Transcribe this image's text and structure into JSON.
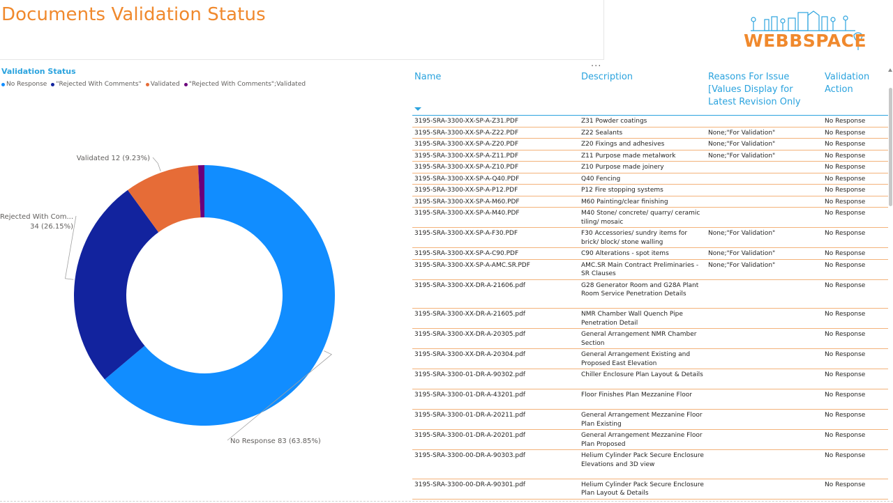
{
  "header": {
    "title": "Documents Validation Status"
  },
  "logo": {
    "text": "WEBBSPACE",
    "icon": "city-skyline-icon"
  },
  "chart_data": {
    "type": "pie",
    "variant": "donut",
    "title": "Validation Status",
    "legend_position": "top-left",
    "categories": [
      "No Response",
      "\"Rejected With Comments\"",
      "Validated",
      "\"Rejected With Comments\";Validated"
    ],
    "values": [
      83,
      34,
      12,
      1
    ],
    "percentages": [
      63.85,
      26.15,
      9.23,
      0.77
    ],
    "colors": [
      "#118dff",
      "#12239e",
      "#e66c37",
      "#6b007b"
    ],
    "labels": [
      {
        "category_line1": "No Response 83 (63.85%)",
        "category_line2": ""
      },
      {
        "category_line1": "\"Rejected With Com...",
        "category_line2": "34 (26.15%)"
      },
      {
        "category_line1": "Validated 12 (9.23%)",
        "category_line2": ""
      }
    ]
  },
  "more_options": "...",
  "table": {
    "columns": [
      {
        "label": "Name"
      },
      {
        "label": "Description"
      },
      {
        "label": "Reasons For Issue [Values Display for Latest Revision Only"
      },
      {
        "label": "Validation Action"
      }
    ],
    "rows": [
      {
        "name": "3195-SRA-3300-XX-SP-A-Z31.PDF",
        "description": "Z31 Powder coatings",
        "reason": "",
        "action": "No Response",
        "lines": 1
      },
      {
        "name": "3195-SRA-3300-XX-SP-A-Z22.PDF",
        "description": "Z22 Sealants",
        "reason": "None;\"For Validation\"",
        "action": "No Response",
        "lines": 1
      },
      {
        "name": "3195-SRA-3300-XX-SP-A-Z20.PDF",
        "description": "Z20 Fixings and adhesives",
        "reason": "None;\"For Validation\"",
        "action": "No Response",
        "lines": 1
      },
      {
        "name": "3195-SRA-3300-XX-SP-A-Z11.PDF",
        "description": "Z11 Purpose made metalwork",
        "reason": "None;\"For Validation\"",
        "action": "No Response",
        "lines": 1
      },
      {
        "name": "3195-SRA-3300-XX-SP-A-Z10.PDF",
        "description": "Z10 Purpose made joinery",
        "reason": "",
        "action": "No Response",
        "lines": 1
      },
      {
        "name": "3195-SRA-3300-XX-SP-A-Q40.PDF",
        "description": "Q40 Fencing",
        "reason": "",
        "action": "No Response",
        "lines": 1
      },
      {
        "name": "3195-SRA-3300-XX-SP-A-P12.PDF",
        "description": "P12 Fire stopping systems",
        "reason": "",
        "action": "No Response",
        "lines": 1
      },
      {
        "name": "3195-SRA-3300-XX-SP-A-M60.PDF",
        "description": "M60 Painting/clear finishing",
        "reason": "",
        "action": "No Response",
        "lines": 1
      },
      {
        "name": "3195-SRA-3300-XX-SP-A-M40.PDF",
        "description": "M40 Stone/ concrete/ quarry/ ceramic tiling/ mosaic",
        "reason": "",
        "action": "No Response",
        "lines": 2
      },
      {
        "name": "3195-SRA-3300-XX-SP-A-F30.PDF",
        "description": "F30 Accessories/ sundry items for brick/ block/ stone walling",
        "reason": "None;\"For Validation\"",
        "action": "No Response",
        "lines": 2
      },
      {
        "name": "3195-SRA-3300-XX-SP-A-C90.PDF",
        "description": "C90 Alterations - spot items",
        "reason": "None;\"For Validation\"",
        "action": "No Response",
        "lines": 1
      },
      {
        "name": "3195-SRA-3300-XX-SP-A-AMC.SR.PDF",
        "description": "AMC.SR Main Contract Preliminaries - SR Clauses",
        "reason": "None;\"For Validation\"",
        "action": "No Response",
        "lines": 2
      },
      {
        "name": "3195-SRA-3300-XX-DR-A-21606.pdf",
        "description": "G28 Generator Room and G28A Plant Room Service Penetration Details",
        "reason": "",
        "action": "No Response",
        "lines": 3
      },
      {
        "name": "3195-SRA-3300-XX-DR-A-21605.pdf",
        "description": "NMR Chamber Wall Quench Pipe Penetration Detail",
        "reason": "",
        "action": "No Response",
        "lines": 2
      },
      {
        "name": "3195-SRA-3300-XX-DR-A-20305.pdf",
        "description": "General Arrangement NMR Chamber Section",
        "reason": "",
        "action": "No Response",
        "lines": 2
      },
      {
        "name": "3195-SRA-3300-XX-DR-A-20304.pdf",
        "description": "General Arrangement Existing and Proposed East Elevation",
        "reason": "",
        "action": "No Response",
        "lines": 2
      },
      {
        "name": "3195-SRA-3300-01-DR-A-90302.pdf",
        "description": "Chiller Enclosure Plan Layout & Details",
        "reason": "",
        "action": "No Response",
        "lines": 2
      },
      {
        "name": "3195-SRA-3300-01-DR-A-43201.pdf",
        "description": "Floor Finishes Plan Mezzanine Floor",
        "reason": "",
        "action": "No Response",
        "lines": 2
      },
      {
        "name": "3195-SRA-3300-01-DR-A-20211.pdf",
        "description": "General Arrangement Mezzanine Floor Plan Existing",
        "reason": "",
        "action": "No Response",
        "lines": 2
      },
      {
        "name": "3195-SRA-3300-01-DR-A-20201.pdf",
        "description": "General Arrangement Mezzanine Floor Plan Proposed",
        "reason": "",
        "action": "No Response",
        "lines": 2
      },
      {
        "name": "3195-SRA-3300-00-DR-A-90303.pdf",
        "description": "Helium Cylinder Pack Secure Enclosure Elevations and 3D view",
        "reason": "",
        "action": "No Response",
        "lines": 3
      },
      {
        "name": "3195-SRA-3300-00-DR-A-90301.pdf",
        "description": "Helium Cylinder Pack Secure Enclosure Plan Layout & Details",
        "reason": "",
        "action": "No Response",
        "lines": 2
      }
    ]
  }
}
